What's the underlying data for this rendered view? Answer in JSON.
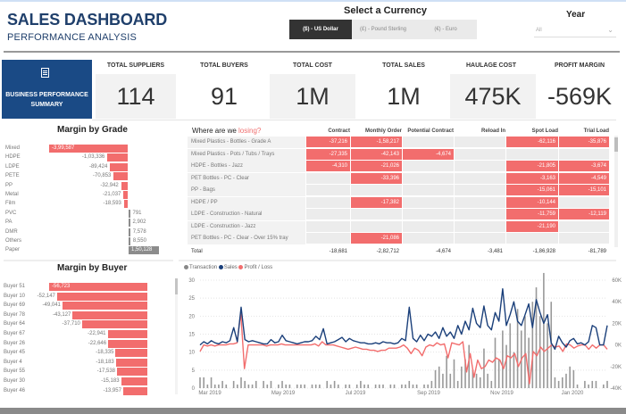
{
  "header": {
    "title": "SALES DASHBOARD",
    "subtitle": "PERFORMANCE ANALYSIS"
  },
  "currency": {
    "label": "Select a Currency",
    "options": [
      {
        "label": "($) - US Dollar",
        "active": true
      },
      {
        "label": "(£) - Pound Sterling",
        "active": false
      },
      {
        "label": "(€) - Euro",
        "active": false
      }
    ]
  },
  "year": {
    "label": "Year",
    "value": "All",
    "icon": "chevron-down-icon"
  },
  "summary_tile": {
    "icon": "report-icon",
    "label": "BUSINESS PERFORMANCE SUMMARY"
  },
  "kpis": [
    {
      "label": "TOTAL SUPPLIERS",
      "value": "114"
    },
    {
      "label": "TOTAL BUYERS",
      "value": "91"
    },
    {
      "label": "TOTAL COST",
      "value": "1M"
    },
    {
      "label": "TOTAL SALES",
      "value": "1M"
    },
    {
      "label": "HAULAGE COST",
      "value": "475K"
    },
    {
      "label": "PROFIT MARGIN",
      "value": "-569K"
    }
  ],
  "colors": {
    "negative": "#f26d6d",
    "positive": "#8c8c8c",
    "brand": "#1a4a85",
    "sales_line": "#1a3f7a",
    "profit_line": "#f26d6d",
    "transaction_bar": "#999999"
  },
  "margin_by_grade": {
    "title": "Margin by Grade",
    "rows": [
      {
        "label": "Mixed",
        "value": -399587,
        "display": "-3,99,587"
      },
      {
        "label": "HDPE",
        "value": -103336,
        "display": "-1,03,336"
      },
      {
        "label": "LDPE",
        "value": -89424,
        "display": "-89,424"
      },
      {
        "label": "PETE",
        "value": -70853,
        "display": "-70,853"
      },
      {
        "label": "PP",
        "value": -32942,
        "display": "-32,942"
      },
      {
        "label": "Metal",
        "value": -21037,
        "display": "-21,037"
      },
      {
        "label": "Film",
        "value": -18593,
        "display": "-18,593"
      },
      {
        "label": "PVC",
        "value": 791,
        "display": "791"
      },
      {
        "label": "PA",
        "value": 2902,
        "display": "2,902"
      },
      {
        "label": "DMR",
        "value": 7578,
        "display": "7,578"
      },
      {
        "label": "Others",
        "value": 8550,
        "display": "8,550"
      },
      {
        "label": "Paper",
        "value": 150128,
        "display": "1,50,128"
      }
    ]
  },
  "losing_table": {
    "title_prefix": "Where are we ",
    "title_highlight": "losing?",
    "columns": [
      "Contract",
      "Monthly Order",
      "Potential Contract",
      "Reload In",
      "Spot Load",
      "Trial Load"
    ],
    "rows": [
      {
        "name": "Mixed Plastics - Bottles - Grade A",
        "cells": [
          "-37,216",
          "-1,58,217",
          "",
          "",
          "-62,116",
          "-35,876"
        ]
      },
      {
        "name": "Mixed Plastics - Pots / Tubs / Trays",
        "cells": [
          "-27,335",
          "-42,143",
          "-4,674",
          "",
          "",
          ""
        ]
      },
      {
        "name": "HDPE - Bottles - Jazz",
        "cells": [
          "-4,310",
          "-21,026",
          "",
          "",
          "-21,805",
          "-3,674"
        ]
      },
      {
        "name": "PET Bottles - PC - Clear",
        "cells": [
          "",
          "-33,396",
          "",
          "",
          "-3,163",
          "-4,549"
        ]
      },
      {
        "name": "PP - Bags",
        "cells": [
          "",
          "",
          "",
          "",
          "-15,061",
          "-15,101"
        ]
      },
      {
        "name": "HDPE / PP",
        "cells": [
          "",
          "-17,382",
          "",
          "",
          "-10,144",
          ""
        ]
      },
      {
        "name": "LDPE - Construction - Natural",
        "cells": [
          "",
          "",
          "",
          "",
          "-11,759",
          "-12,119"
        ]
      },
      {
        "name": "LDPE - Construction - Jazz",
        "cells": [
          "",
          "",
          "",
          "",
          "-21,190",
          ""
        ]
      },
      {
        "name": "PET Bottles - PC - Clear - Over 15% tray",
        "cells": [
          "",
          "-21,086",
          "",
          "",
          "",
          ""
        ]
      }
    ],
    "total": {
      "label": "Total",
      "cells": [
        "-18,681",
        "-2,82,712",
        "-4,674",
        "-3,481",
        "-1,86,928",
        "-81,789"
      ]
    }
  },
  "margin_by_buyer": {
    "title": "Margin by Buyer",
    "rows": [
      {
        "label": "Buyer 51",
        "value": -56723,
        "display": "-56,723"
      },
      {
        "label": "Buyer 10",
        "value": -52147,
        "display": "-52,147"
      },
      {
        "label": "Buyer 69",
        "value": -49041,
        "display": "-49,041"
      },
      {
        "label": "Buyer 78",
        "value": -43127,
        "display": "-43,127"
      },
      {
        "label": "Buyer 64",
        "value": -37710,
        "display": "-37,710"
      },
      {
        "label": "Buyer 67",
        "value": -22941,
        "display": "-22,941"
      },
      {
        "label": "Buyer 26",
        "value": -22646,
        "display": "-22,646"
      },
      {
        "label": "Buyer 45",
        "value": -18335,
        "display": "-18,335"
      },
      {
        "label": "Buyer 4",
        "value": -18183,
        "display": "-18,183"
      },
      {
        "label": "Buyer 55",
        "value": -17538,
        "display": "-17,538"
      },
      {
        "label": "Buyer 30",
        "value": -15183,
        "display": "-15,183"
      },
      {
        "label": "Buyer 46",
        "value": -13957,
        "display": "-13,957"
      }
    ]
  },
  "chart_data": {
    "type": "line",
    "title": "",
    "legend": [
      "Transaction",
      "Sales",
      "Profit / Loss"
    ],
    "legend_position": "top-left",
    "x_ticks": [
      "Mar 2019",
      "May 2019",
      "Jul 2019",
      "Sep 2019",
      "Nov 2019",
      "Jan 2020"
    ],
    "left_axis": {
      "label": "Transaction",
      "ticks": [
        0,
        5,
        10,
        15,
        20,
        25,
        30
      ],
      "range": [
        0,
        30
      ]
    },
    "right_axis": {
      "label": "Sales / Profit",
      "ticks": [
        "-40K",
        "-20K",
        "0K",
        "20K",
        "40K",
        "60K"
      ],
      "range": [
        -40000,
        60000
      ]
    },
    "grid": true,
    "series": [
      {
        "name": "Sales",
        "axis": "right",
        "values": [
          0,
          3000,
          1000,
          4000,
          2000,
          1000,
          3000,
          2000,
          4000,
          16000,
          3000,
          35000,
          5000,
          3000,
          4000,
          3000,
          2000,
          1000,
          1000,
          5000,
          2000,
          3000,
          9000,
          4000,
          3000,
          2000,
          1000,
          2000,
          3000,
          3000,
          4000,
          8000,
          5000,
          15000,
          1000,
          2000,
          3000,
          5000,
          7000,
          3000,
          6000,
          4000,
          3000,
          2000,
          2000,
          1000,
          1000,
          2000,
          1000,
          3000,
          2000,
          2000,
          1000,
          2000,
          6000,
          4000,
          35000,
          6000,
          3000,
          9000,
          4000,
          10000,
          8000,
          12000,
          6000,
          16000,
          8000,
          12000,
          6000,
          18000,
          10000,
          22000,
          14000,
          34000,
          20000,
          16000,
          36000,
          18000,
          14000,
          30000,
          22000,
          52000,
          18000,
          28000,
          40000,
          22000,
          18000,
          28000,
          38000,
          16000,
          42000,
          30000,
          20000,
          28000,
          2000,
          -4000,
          8000,
          2000,
          -2000,
          4000,
          6000,
          1000,
          2000,
          0,
          3000,
          18000,
          16000,
          0,
          0,
          18000
        ]
      },
      {
        "name": "Profit / Loss",
        "axis": "right",
        "values": [
          -6000,
          0,
          -1000,
          0,
          -1000,
          0,
          0,
          0,
          1000,
          1000,
          2000,
          30000,
          -22000,
          0,
          0,
          0,
          0,
          0,
          -1000,
          0,
          0,
          0,
          1000,
          0,
          0,
          0,
          0,
          0,
          0,
          0,
          0,
          1000,
          -1000,
          3000,
          0,
          0,
          0,
          -1000,
          -2000,
          -3000,
          -4000,
          -3000,
          -2000,
          -3000,
          -4000,
          -4000,
          -5000,
          -5000,
          -6000,
          -5000,
          -5000,
          -3000,
          -3000,
          -3000,
          -2000,
          0,
          -3000,
          -8000,
          -3000,
          -5000,
          -10000,
          -2000,
          0,
          -1000,
          2000,
          0,
          1000,
          -12000,
          2000,
          1000,
          0,
          3000,
          -25000,
          -8000,
          -30000,
          -14000,
          -22000,
          -20000,
          -14000,
          -16000,
          -12000,
          -14000,
          -22000,
          -10000,
          -12000,
          -8000,
          -20000,
          -12000,
          -8000,
          -36000,
          -6000,
          -10000,
          -2000,
          -6000,
          -3000,
          0,
          -2000,
          -1000,
          -6000,
          1000,
          0,
          -3000,
          -1000,
          0,
          0,
          -4000,
          0,
          -3000,
          0,
          0,
          -4000
        ]
      },
      {
        "name": "Transaction",
        "axis": "left",
        "values": [
          3,
          3,
          1,
          3,
          1,
          1,
          2,
          1,
          0,
          2,
          1,
          3,
          2,
          1,
          1,
          2,
          0,
          2,
          1,
          2,
          0,
          1,
          2,
          1,
          1,
          0,
          1,
          1,
          1,
          0,
          1,
          1,
          1,
          0,
          2,
          1,
          2,
          1,
          0,
          1,
          1,
          0,
          1,
          2,
          1,
          1,
          0,
          1,
          1,
          1,
          0,
          1,
          1,
          0,
          1,
          1,
          2,
          1,
          1,
          0,
          1,
          1,
          2,
          5,
          6,
          4,
          9,
          4,
          8,
          2,
          6,
          8,
          12,
          5,
          4,
          3,
          11,
          4,
          2,
          14,
          8,
          16,
          12,
          18,
          10,
          22,
          16,
          20,
          14,
          24,
          28,
          20,
          32,
          18,
          24,
          3,
          2,
          3,
          4,
          6,
          5,
          1,
          0,
          2,
          1,
          2,
          2,
          0,
          1,
          2
        ]
      }
    ]
  }
}
